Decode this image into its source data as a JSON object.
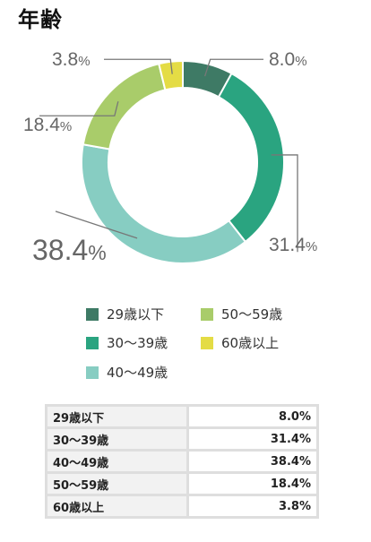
{
  "title": "年齢",
  "chart_data": {
    "type": "pie",
    "title": "年齢",
    "hole": true,
    "slices": [
      {
        "label": "29歳以下",
        "value": 8.0,
        "display": "8.0",
        "color": "#3e7a65"
      },
      {
        "label": "30〜39歳",
        "value": 31.4,
        "display": "31.4",
        "color": "#2aa480"
      },
      {
        "label": "40〜49歳",
        "value": 38.4,
        "display": "38.4",
        "color": "#87cdc2"
      },
      {
        "label": "50〜59歳",
        "value": 18.4,
        "display": "18.4",
        "color": "#a9cc6a"
      },
      {
        "label": "60歳以上",
        "value": 3.8,
        "display": "3.8",
        "color": "#e4dc45"
      }
    ],
    "percent_sign": "%",
    "legend_position": "bottom"
  },
  "table": {
    "rows": [
      {
        "label": "29歳以下",
        "value": "8.0%"
      },
      {
        "label": "30〜39歳",
        "value": "31.4%"
      },
      {
        "label": "40〜49歳",
        "value": "38.4%"
      },
      {
        "label": "50〜59歳",
        "value": "18.4%"
      },
      {
        "label": "60歳以上",
        "value": "3.8%"
      }
    ]
  }
}
